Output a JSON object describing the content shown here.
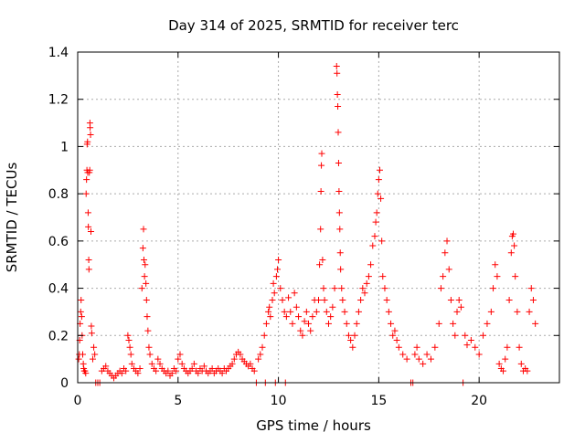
{
  "chart_data": {
    "type": "scatter",
    "title": "Day 314 of 2025, SRMTID for receiver terc",
    "xlabel": "GPS time / hours",
    "ylabel": "SRMTID / TECUs",
    "xlim": [
      0,
      24
    ],
    "ylim": [
      0,
      1.4
    ],
    "xticks": [
      0,
      5,
      10,
      15,
      20
    ],
    "xtick_labels": [
      "0",
      "5",
      "10",
      "15",
      "20"
    ],
    "yticks": [
      0,
      0.2,
      0.4,
      0.6,
      0.8,
      1,
      1.2,
      1.4
    ],
    "ytick_labels": [
      "0",
      "0.2",
      "0.4",
      "0.6",
      "0.8",
      "1",
      "1.2",
      "1.4"
    ],
    "grid": true,
    "marker": "+",
    "series": [
      {
        "name": "SRMTID",
        "color": "#ff0000",
        "points": [
          [
            0.05,
            0.1
          ],
          [
            0.08,
            0.12
          ],
          [
            0.1,
            0.18
          ],
          [
            0.12,
            0.25
          ],
          [
            0.15,
            0.3
          ],
          [
            0.17,
            0.35
          ],
          [
            0.2,
            0.28
          ],
          [
            0.22,
            0.2
          ],
          [
            0.25,
            0.12
          ],
          [
            0.28,
            0.08
          ],
          [
            0.3,
            0.06
          ],
          [
            0.33,
            0.05
          ],
          [
            0.36,
            0.05
          ],
          [
            0.4,
            0.04
          ],
          [
            0.42,
            0.8
          ],
          [
            0.44,
            0.86
          ],
          [
            0.46,
            0.9
          ],
          [
            0.47,
            1.01
          ],
          [
            0.49,
            1.02
          ],
          [
            0.5,
            0.89
          ],
          [
            0.52,
            0.72
          ],
          [
            0.53,
            0.66
          ],
          [
            0.55,
            0.52
          ],
          [
            0.56,
            0.48
          ],
          [
            0.58,
            0.89
          ],
          [
            0.6,
            0.9
          ],
          [
            0.61,
            1.1
          ],
          [
            0.62,
            1.08
          ],
          [
            0.64,
            1.05
          ],
          [
            0.66,
            0.64
          ],
          [
            0.68,
            0.24
          ],
          [
            0.7,
            0.21
          ],
          [
            0.75,
            0.1
          ],
          [
            0.8,
            0.15
          ],
          [
            0.85,
            0.12
          ],
          [
            0.9,
            0.0
          ],
          [
            1.0,
            0.0
          ],
          [
            1.1,
            0.0
          ],
          [
            1.2,
            0.05
          ],
          [
            1.3,
            0.06
          ],
          [
            1.4,
            0.07
          ],
          [
            1.5,
            0.05
          ],
          [
            1.6,
            0.04
          ],
          [
            1.7,
            0.03
          ],
          [
            1.8,
            0.02
          ],
          [
            1.9,
            0.03
          ],
          [
            2.0,
            0.04
          ],
          [
            2.1,
            0.05
          ],
          [
            2.2,
            0.04
          ],
          [
            2.3,
            0.06
          ],
          [
            2.4,
            0.05
          ],
          [
            2.5,
            0.2
          ],
          [
            2.55,
            0.18
          ],
          [
            2.6,
            0.15
          ],
          [
            2.65,
            0.12
          ],
          [
            2.7,
            0.08
          ],
          [
            2.8,
            0.06
          ],
          [
            2.9,
            0.05
          ],
          [
            3.0,
            0.04
          ],
          [
            3.1,
            0.06
          ],
          [
            3.2,
            0.4
          ],
          [
            3.25,
            0.57
          ],
          [
            3.28,
            0.65
          ],
          [
            3.3,
            0.52
          ],
          [
            3.33,
            0.45
          ],
          [
            3.36,
            0.5
          ],
          [
            3.4,
            0.42
          ],
          [
            3.43,
            0.35
          ],
          [
            3.46,
            0.28
          ],
          [
            3.5,
            0.22
          ],
          [
            3.55,
            0.15
          ],
          [
            3.6,
            0.12
          ],
          [
            3.7,
            0.08
          ],
          [
            3.8,
            0.06
          ],
          [
            3.9,
            0.05
          ],
          [
            4.0,
            0.1
          ],
          [
            4.1,
            0.08
          ],
          [
            4.2,
            0.06
          ],
          [
            4.3,
            0.05
          ],
          [
            4.4,
            0.04
          ],
          [
            4.5,
            0.05
          ],
          [
            4.6,
            0.03
          ],
          [
            4.7,
            0.04
          ],
          [
            4.8,
            0.06
          ],
          [
            4.9,
            0.05
          ],
          [
            5.0,
            0.1
          ],
          [
            5.1,
            0.12
          ],
          [
            5.2,
            0.08
          ],
          [
            5.3,
            0.06
          ],
          [
            5.4,
            0.05
          ],
          [
            5.5,
            0.04
          ],
          [
            5.6,
            0.05
          ],
          [
            5.7,
            0.06
          ],
          [
            5.8,
            0.08
          ],
          [
            5.9,
            0.05
          ],
          [
            6.0,
            0.04
          ],
          [
            6.1,
            0.06
          ],
          [
            6.2,
            0.05
          ],
          [
            6.3,
            0.07
          ],
          [
            6.4,
            0.05
          ],
          [
            6.5,
            0.04
          ],
          [
            6.6,
            0.05
          ],
          [
            6.7,
            0.06
          ],
          [
            6.8,
            0.04
          ],
          [
            6.9,
            0.05
          ],
          [
            7.0,
            0.06
          ],
          [
            7.1,
            0.05
          ],
          [
            7.2,
            0.04
          ],
          [
            7.3,
            0.06
          ],
          [
            7.4,
            0.05
          ],
          [
            7.5,
            0.06
          ],
          [
            7.6,
            0.07
          ],
          [
            7.7,
            0.08
          ],
          [
            7.8,
            0.1
          ],
          [
            7.9,
            0.12
          ],
          [
            8.0,
            0.13
          ],
          [
            8.1,
            0.12
          ],
          [
            8.2,
            0.1
          ],
          [
            8.3,
            0.09
          ],
          [
            8.4,
            0.08
          ],
          [
            8.5,
            0.07
          ],
          [
            8.6,
            0.08
          ],
          [
            8.7,
            0.06
          ],
          [
            8.8,
            0.05
          ],
          [
            8.9,
            0.0
          ],
          [
            9.0,
            0.1
          ],
          [
            9.1,
            0.12
          ],
          [
            9.2,
            0.15
          ],
          [
            9.3,
            0.2
          ],
          [
            9.35,
            0.0
          ],
          [
            9.4,
            0.25
          ],
          [
            9.5,
            0.3
          ],
          [
            9.55,
            0.32
          ],
          [
            9.6,
            0.28
          ],
          [
            9.7,
            0.35
          ],
          [
            9.75,
            0.42
          ],
          [
            9.8,
            0.38
          ],
          [
            9.85,
            0.0
          ],
          [
            9.9,
            0.45
          ],
          [
            9.95,
            0.48
          ],
          [
            10.0,
            0.52
          ],
          [
            10.1,
            0.4
          ],
          [
            10.2,
            0.35
          ],
          [
            10.3,
            0.3
          ],
          [
            10.35,
            0.0
          ],
          [
            10.4,
            0.28
          ],
          [
            10.5,
            0.36
          ],
          [
            10.6,
            0.3
          ],
          [
            10.7,
            0.25
          ],
          [
            10.8,
            0.38
          ],
          [
            10.9,
            0.32
          ],
          [
            11.0,
            0.28
          ],
          [
            11.1,
            0.22
          ],
          [
            11.2,
            0.2
          ],
          [
            11.3,
            0.26
          ],
          [
            11.4,
            0.3
          ],
          [
            11.5,
            0.25
          ],
          [
            11.6,
            0.22
          ],
          [
            11.7,
            0.28
          ],
          [
            11.8,
            0.35
          ],
          [
            11.9,
            0.3
          ],
          [
            12.0,
            0.35
          ],
          [
            12.05,
            0.5
          ],
          [
            12.1,
            0.65
          ],
          [
            12.12,
            0.81
          ],
          [
            12.14,
            0.92
          ],
          [
            12.16,
            0.97
          ],
          [
            12.2,
            0.52
          ],
          [
            12.25,
            0.4
          ],
          [
            12.3,
            0.35
          ],
          [
            12.4,
            0.3
          ],
          [
            12.5,
            0.25
          ],
          [
            12.6,
            0.28
          ],
          [
            12.7,
            0.32
          ],
          [
            12.8,
            0.4
          ],
          [
            12.9,
            1.34
          ],
          [
            12.92,
            1.31
          ],
          [
            12.94,
            1.22
          ],
          [
            12.96,
            1.17
          ],
          [
            12.98,
            1.06
          ],
          [
            13.0,
            0.93
          ],
          [
            13.02,
            0.81
          ],
          [
            13.04,
            0.72
          ],
          [
            13.06,
            0.65
          ],
          [
            13.08,
            0.55
          ],
          [
            13.1,
            0.48
          ],
          [
            13.15,
            0.4
          ],
          [
            13.2,
            0.35
          ],
          [
            13.3,
            0.3
          ],
          [
            13.4,
            0.25
          ],
          [
            13.5,
            0.2
          ],
          [
            13.6,
            0.18
          ],
          [
            13.7,
            0.15
          ],
          [
            13.8,
            0.2
          ],
          [
            13.9,
            0.25
          ],
          [
            14.0,
            0.3
          ],
          [
            14.1,
            0.35
          ],
          [
            14.2,
            0.4
          ],
          [
            14.3,
            0.38
          ],
          [
            14.4,
            0.42
          ],
          [
            14.5,
            0.45
          ],
          [
            14.6,
            0.5
          ],
          [
            14.7,
            0.58
          ],
          [
            14.8,
            0.62
          ],
          [
            14.85,
            0.68
          ],
          [
            14.9,
            0.72
          ],
          [
            14.95,
            0.8
          ],
          [
            15.0,
            0.86
          ],
          [
            15.05,
            0.9
          ],
          [
            15.1,
            0.78
          ],
          [
            15.15,
            0.6
          ],
          [
            15.2,
            0.45
          ],
          [
            15.3,
            0.4
          ],
          [
            15.4,
            0.35
          ],
          [
            15.5,
            0.3
          ],
          [
            15.6,
            0.25
          ],
          [
            15.7,
            0.2
          ],
          [
            15.8,
            0.22
          ],
          [
            15.9,
            0.18
          ],
          [
            16.0,
            0.15
          ],
          [
            16.2,
            0.12
          ],
          [
            16.4,
            0.1
          ],
          [
            16.6,
            0.0
          ],
          [
            16.7,
            0.0
          ],
          [
            16.8,
            0.12
          ],
          [
            16.9,
            0.15
          ],
          [
            17.0,
            0.1
          ],
          [
            17.2,
            0.08
          ],
          [
            17.4,
            0.12
          ],
          [
            17.6,
            0.1
          ],
          [
            17.8,
            0.15
          ],
          [
            18.0,
            0.25
          ],
          [
            18.1,
            0.4
          ],
          [
            18.2,
            0.45
          ],
          [
            18.3,
            0.55
          ],
          [
            18.4,
            0.6
          ],
          [
            18.5,
            0.48
          ],
          [
            18.6,
            0.35
          ],
          [
            18.7,
            0.25
          ],
          [
            18.8,
            0.2
          ],
          [
            18.9,
            0.3
          ],
          [
            19.0,
            0.35
          ],
          [
            19.1,
            0.32
          ],
          [
            19.2,
            0.0
          ],
          [
            19.3,
            0.2
          ],
          [
            19.4,
            0.16
          ],
          [
            19.6,
            0.18
          ],
          [
            19.8,
            0.15
          ],
          [
            20.0,
            0.12
          ],
          [
            20.2,
            0.2
          ],
          [
            20.4,
            0.25
          ],
          [
            20.6,
            0.3
          ],
          [
            20.7,
            0.4
          ],
          [
            20.8,
            0.5
          ],
          [
            20.9,
            0.45
          ],
          [
            21.0,
            0.08
          ],
          [
            21.1,
            0.06
          ],
          [
            21.2,
            0.05
          ],
          [
            21.3,
            0.1
          ],
          [
            21.4,
            0.15
          ],
          [
            21.5,
            0.35
          ],
          [
            21.6,
            0.55
          ],
          [
            21.65,
            0.62
          ],
          [
            21.7,
            0.63
          ],
          [
            21.75,
            0.58
          ],
          [
            21.8,
            0.45
          ],
          [
            21.9,
            0.3
          ],
          [
            22.0,
            0.15
          ],
          [
            22.1,
            0.08
          ],
          [
            22.2,
            0.05
          ],
          [
            22.3,
            0.06
          ],
          [
            22.4,
            0.05
          ],
          [
            22.5,
            0.3
          ],
          [
            22.6,
            0.4
          ],
          [
            22.7,
            0.35
          ],
          [
            22.8,
            0.25
          ]
        ]
      }
    ]
  }
}
